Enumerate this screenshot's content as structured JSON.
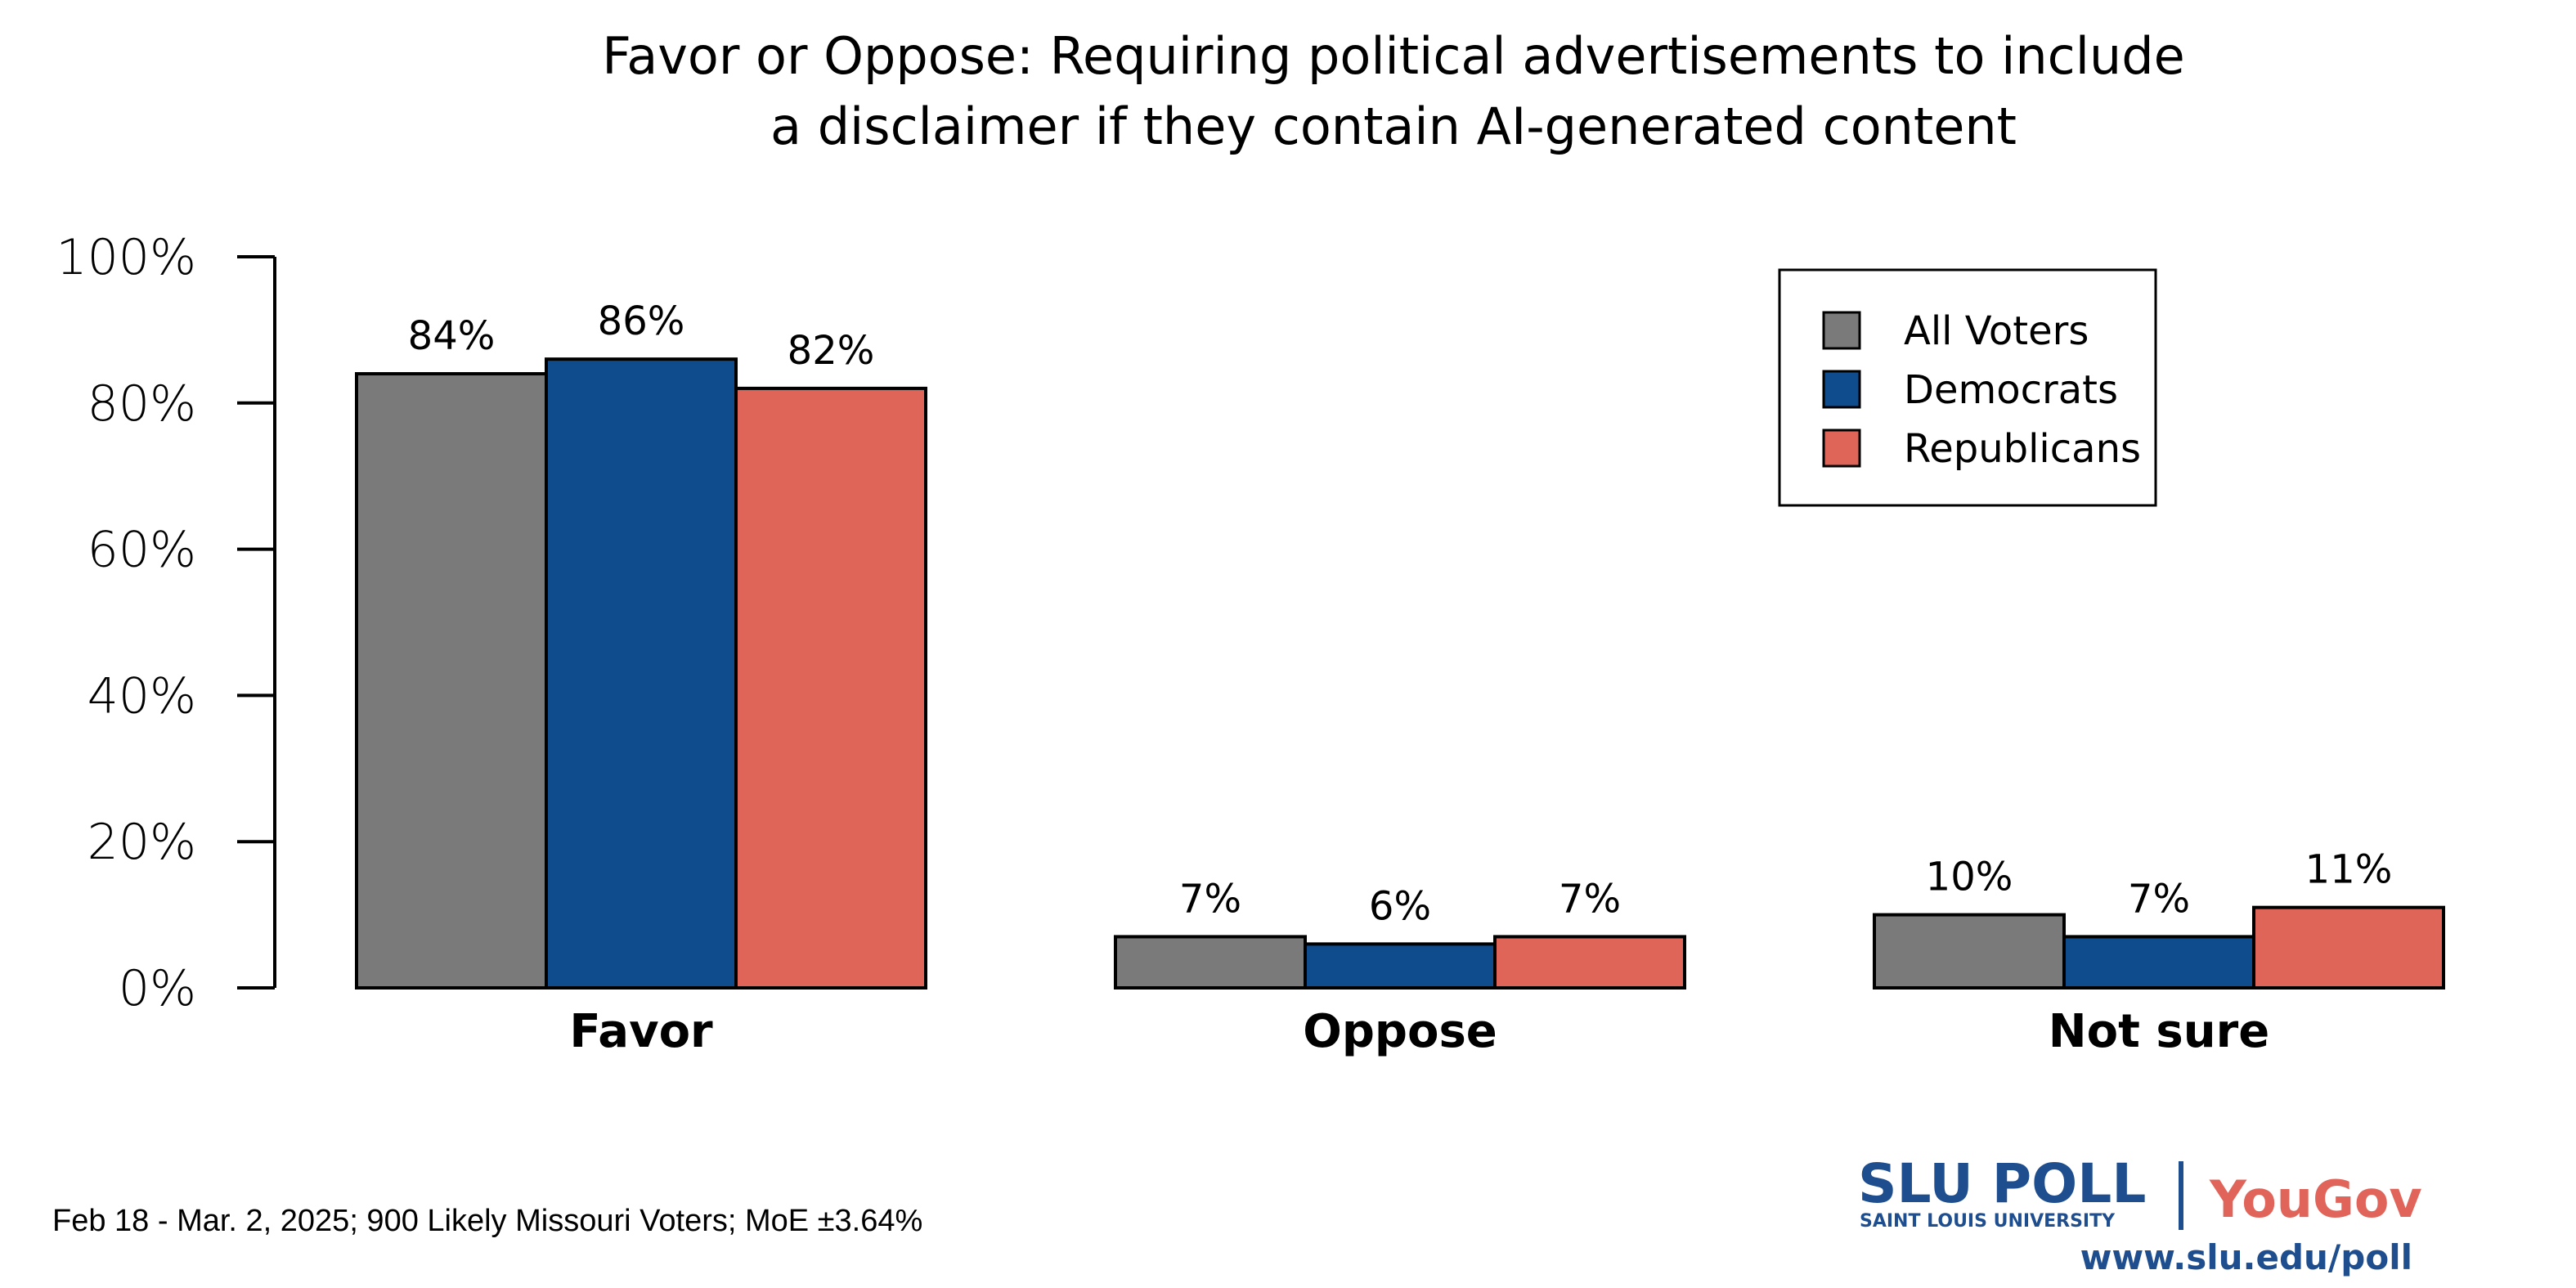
{
  "chart_data": {
    "type": "bar",
    "title_lines": [
      "Favor or Oppose: Requiring political advertisements to include",
      "a disclaimer if they contain AI-generated content"
    ],
    "categories": [
      "Favor",
      "Oppose",
      "Not sure"
    ],
    "series": [
      {
        "name": "All Voters",
        "color": "#7a7a7a",
        "values": [
          84,
          7,
          10
        ]
      },
      {
        "name": "Democrats",
        "color": "#0e4c8e",
        "values": [
          86,
          6,
          7
        ]
      },
      {
        "name": "Republicans",
        "color": "#de6558",
        "values": [
          82,
          7,
          11
        ]
      }
    ],
    "value_labels": [
      [
        "84%",
        "7%",
        "10%"
      ],
      [
        "86%",
        "6%",
        "7%"
      ],
      [
        "82%",
        "7%",
        "11%"
      ]
    ],
    "yticks": [
      0,
      20,
      40,
      60,
      80,
      100
    ],
    "ytick_labels": [
      "0%",
      "20%",
      "40%",
      "60%",
      "80%",
      "100%"
    ],
    "ylim": [
      0,
      100
    ],
    "grid": false,
    "legend_position": "top-right"
  },
  "footer": {
    "note": "Feb 18 - Mar. 2, 2025; 900 Likely Missouri Voters; MoE ±3.64%"
  },
  "logo": {
    "slu": "SLU POLL",
    "slu_sub": "SAINT LOUIS UNIVERSITY",
    "yougov": "YouGov",
    "url": "www.slu.edu/poll",
    "slu_color": "#1f4e8f",
    "yougov_color": "#e0645a"
  }
}
